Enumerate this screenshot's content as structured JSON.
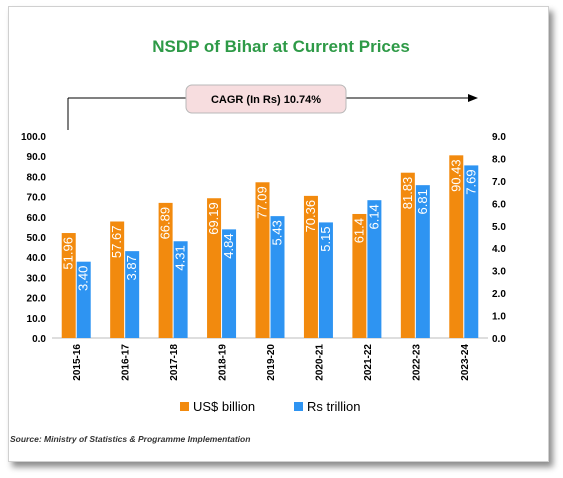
{
  "chart_data": {
    "type": "bar",
    "title": "NSDP of Bihar at Current Prices",
    "annotation": "CAGR (In Rs) 10.74%",
    "categories": [
      "2015-16",
      "2016-17",
      "2017-18",
      "2018-19",
      "2019-20",
      "2020-21",
      "2021-22",
      "2022-23",
      "2023-24"
    ],
    "series": [
      {
        "name": "US$ billion",
        "axis": "left",
        "color": "#F28A0E",
        "values": [
          51.96,
          57.67,
          66.89,
          69.19,
          77.09,
          70.36,
          61.4,
          81.83,
          90.43
        ],
        "labels": [
          "51.96",
          "57.67",
          "66.89",
          "69.19",
          "77.09",
          "70.36",
          "61.4",
          "81.83",
          "90.43"
        ]
      },
      {
        "name": "Rs trillion",
        "axis": "right",
        "color": "#2E94F2",
        "values": [
          3.4,
          3.87,
          4.31,
          4.84,
          5.43,
          5.15,
          6.14,
          6.81,
          7.69
        ],
        "labels": [
          "3.40",
          "3.87",
          "4.31",
          "4.84",
          "5.43",
          "5.15",
          "6.14",
          "6.81",
          "7.69"
        ]
      }
    ],
    "ylim": [
      0,
      100
    ],
    "y2lim": [
      0,
      9
    ],
    "yticks": [
      "0.0",
      "10.0",
      "20.0",
      "30.0",
      "40.0",
      "50.0",
      "60.0",
      "70.0",
      "80.0",
      "90.0",
      "100.0"
    ],
    "y2ticks": [
      "0.0",
      "1.0",
      "2.0",
      "3.0",
      "4.0",
      "5.0",
      "6.0",
      "7.0",
      "8.0",
      "9.0"
    ],
    "legend_position": "bottom",
    "grid": false
  },
  "source": "Source: Ministry of Statistics & Programme Implementation"
}
